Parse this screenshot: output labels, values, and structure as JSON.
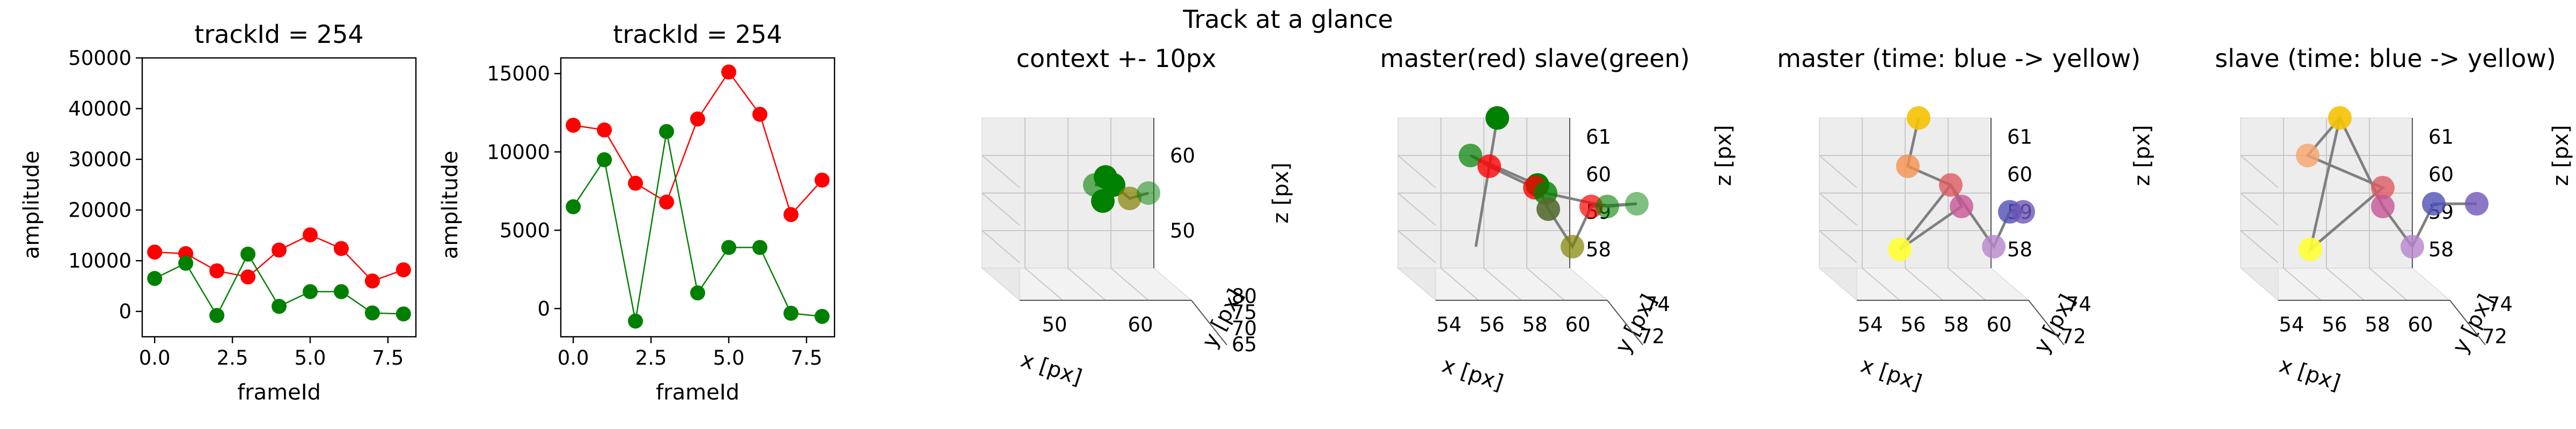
{
  "suptitle": "Track at a glance",
  "colors": {
    "master": "#ff0000",
    "slave": "#008000",
    "connector": "#808080"
  },
  "chart_data": [
    {
      "type": "line",
      "title": "trackId = 254",
      "xlabel": "frameId",
      "ylabel": "amplitude",
      "xlim": [
        -0.4,
        8.4
      ],
      "ylim": [
        -5000,
        50000
      ],
      "xticks": [
        "0.0",
        "2.5",
        "5.0",
        "7.5"
      ],
      "xtick_values": [
        0,
        2.5,
        5,
        7.5
      ],
      "yticks": [
        "0",
        "10000",
        "20000",
        "30000",
        "40000",
        "50000"
      ],
      "ytick_values": [
        0,
        10000,
        20000,
        30000,
        40000,
        50000
      ],
      "x": [
        0,
        1,
        2,
        3,
        4,
        5,
        6,
        7,
        8
      ],
      "series": [
        {
          "color": "#ff0000",
          "values": [
            11700,
            11400,
            8000,
            6800,
            12100,
            15100,
            12400,
            6000,
            8200
          ]
        },
        {
          "color": "#008000",
          "values": [
            6500,
            9500,
            -800,
            11300,
            1000,
            3900,
            3900,
            -300,
            -500
          ]
        }
      ]
    },
    {
      "type": "line",
      "title": "trackId = 254",
      "xlabel": "frameId",
      "ylabel": "amplitude",
      "xlim": [
        -0.4,
        8.4
      ],
      "ylim": [
        -1800,
        16000
      ],
      "xticks": [
        "0.0",
        "2.5",
        "5.0",
        "7.5"
      ],
      "xtick_values": [
        0,
        2.5,
        5,
        7.5
      ],
      "yticks": [
        "0",
        "5000",
        "10000",
        "15000"
      ],
      "ytick_values": [
        0,
        5000,
        10000,
        15000
      ],
      "x": [
        0,
        1,
        2,
        3,
        4,
        5,
        6,
        7,
        8
      ],
      "series": [
        {
          "color": "#ff0000",
          "values": [
            11700,
            11400,
            8000,
            6800,
            12100,
            15100,
            12400,
            6000,
            8200
          ]
        },
        {
          "color": "#008000",
          "values": [
            6500,
            9500,
            -800,
            11300,
            1000,
            3900,
            3900,
            -300,
            -500
          ]
        }
      ]
    },
    {
      "type": "scatter",
      "title": "context +- 10px",
      "xlabel": "x [px]",
      "ylabel": "y [px]",
      "zlabel": "z [px]",
      "xticks": [
        "50",
        "60"
      ],
      "yticks": [
        "65",
        "70",
        "75",
        "80"
      ],
      "zticks": [
        "50",
        "60"
      ],
      "points": [
        {
          "color": "#008000",
          "opacity": 0.6
        },
        {
          "color": "#008000",
          "opacity": 1.0
        },
        {
          "color": "#008000",
          "opacity": 1.0
        },
        {
          "color": "#008000",
          "opacity": 1.0
        },
        {
          "color": "#808000",
          "opacity": 0.7
        },
        {
          "color": "#008000",
          "opacity": 0.5
        }
      ]
    },
    {
      "type": "scatter",
      "title": "master(red) slave(green)",
      "xlabel": "x [px]",
      "ylabel": "y [px]",
      "zlabel": "z [px]",
      "xticks": [
        "54",
        "56",
        "58",
        "60"
      ],
      "yticks": [
        "72",
        "74"
      ],
      "zticks": [
        "58",
        "59",
        "60",
        "61"
      ],
      "points": [
        {
          "color": "#008000",
          "opacity": 1.0
        },
        {
          "color": "#008000",
          "opacity": 0.7
        },
        {
          "color": "#ff0000",
          "opacity": 0.8
        },
        {
          "color": "#008000",
          "opacity": 1.0
        },
        {
          "color": "#ff0000",
          "opacity": 0.8
        },
        {
          "color": "#008000",
          "opacity": 0.8
        },
        {
          "color": "#556b2f",
          "opacity": 0.9
        },
        {
          "color": "#ff0000",
          "opacity": 0.7
        },
        {
          "color": "#008000",
          "opacity": 0.6
        },
        {
          "color": "#808000",
          "opacity": 0.7
        },
        {
          "color": "#008000",
          "opacity": 0.5
        }
      ]
    },
    {
      "type": "scatter",
      "title": "master (time: blue -> yellow)",
      "xlabel": "x [px]",
      "ylabel": "y [px]",
      "zlabel": "z [px]",
      "xticks": [
        "54",
        "56",
        "58",
        "60"
      ],
      "yticks": [
        "72",
        "74"
      ],
      "zticks": [
        "58",
        "59",
        "60",
        "61"
      ],
      "points": [
        {
          "color": "#f4c200",
          "opacity": 0.9
        },
        {
          "color": "#f5904c",
          "opacity": 0.8
        },
        {
          "color": "#dd5a62",
          "opacity": 0.8
        },
        {
          "color": "#c75596",
          "opacity": 0.8
        },
        {
          "color": "#ffff33",
          "opacity": 0.9
        },
        {
          "color": "#b784cc",
          "opacity": 0.8
        },
        {
          "color": "#4f4fb5",
          "opacity": 0.8
        },
        {
          "color": "#6e55b8",
          "opacity": 0.8
        }
      ]
    },
    {
      "type": "scatter",
      "title": "slave (time: blue -> yellow)",
      "xlabel": "x [px]",
      "ylabel": "y [px]",
      "zlabel": "z [px]",
      "xticks": [
        "54",
        "56",
        "58",
        "60"
      ],
      "yticks": [
        "72",
        "74"
      ],
      "zticks": [
        "58",
        "59",
        "60",
        "61"
      ],
      "points": [
        {
          "color": "#f4c200",
          "opacity": 0.9
        },
        {
          "color": "#f5a26a",
          "opacity": 0.8
        },
        {
          "color": "#dd5a62",
          "opacity": 0.8
        },
        {
          "color": "#c75596",
          "opacity": 0.8
        },
        {
          "color": "#ffff33",
          "opacity": 0.9
        },
        {
          "color": "#b784cc",
          "opacity": 0.8
        },
        {
          "color": "#4f4fb5",
          "opacity": 0.8
        },
        {
          "color": "#6e55b8",
          "opacity": 0.8
        }
      ]
    }
  ]
}
